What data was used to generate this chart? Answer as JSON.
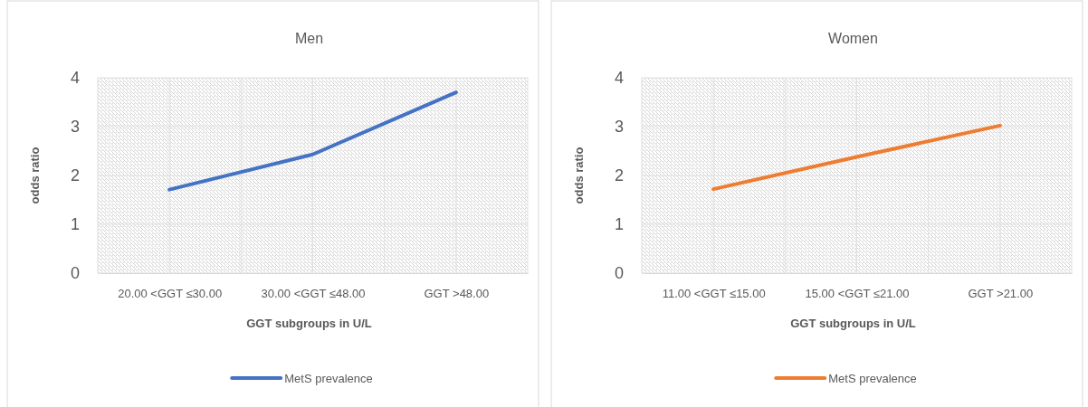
{
  "chart_data": [
    {
      "type": "line",
      "title": "Men",
      "xlabel": "GGT subgroups in U/L",
      "ylabel": "odds ratio",
      "categories": [
        "20.00 <GGT ≤30.00",
        "30.00 <GGT ≤48.00",
        "GGT >48.00"
      ],
      "series": [
        {
          "name": "MetS prevalence",
          "color": "#4472c4",
          "values": [
            1.71,
            2.43,
            3.7
          ]
        }
      ],
      "ylim": [
        0,
        4
      ],
      "yticks": [
        0,
        1,
        2,
        3,
        4
      ],
      "grid": true,
      "legend": "bottom",
      "marker": "none",
      "line_style": "solid"
    },
    {
      "type": "line",
      "title": "Women",
      "xlabel": "GGT subgroups in U/L",
      "ylabel": "odds ratio",
      "categories": [
        "11.00 <GGT ≤15.00",
        "15.00 <GGT ≤21.00",
        "GGT >21.00"
      ],
      "series": [
        {
          "name": "MetS prevalence",
          "color": "#ed7d31",
          "values": [
            1.72,
            2.38,
            3.02
          ]
        }
      ],
      "ylim": [
        0,
        4
      ],
      "yticks": [
        0,
        1,
        2,
        3,
        4
      ],
      "grid": true,
      "legend": "bottom",
      "marker": "none",
      "line_style": "solid"
    }
  ]
}
